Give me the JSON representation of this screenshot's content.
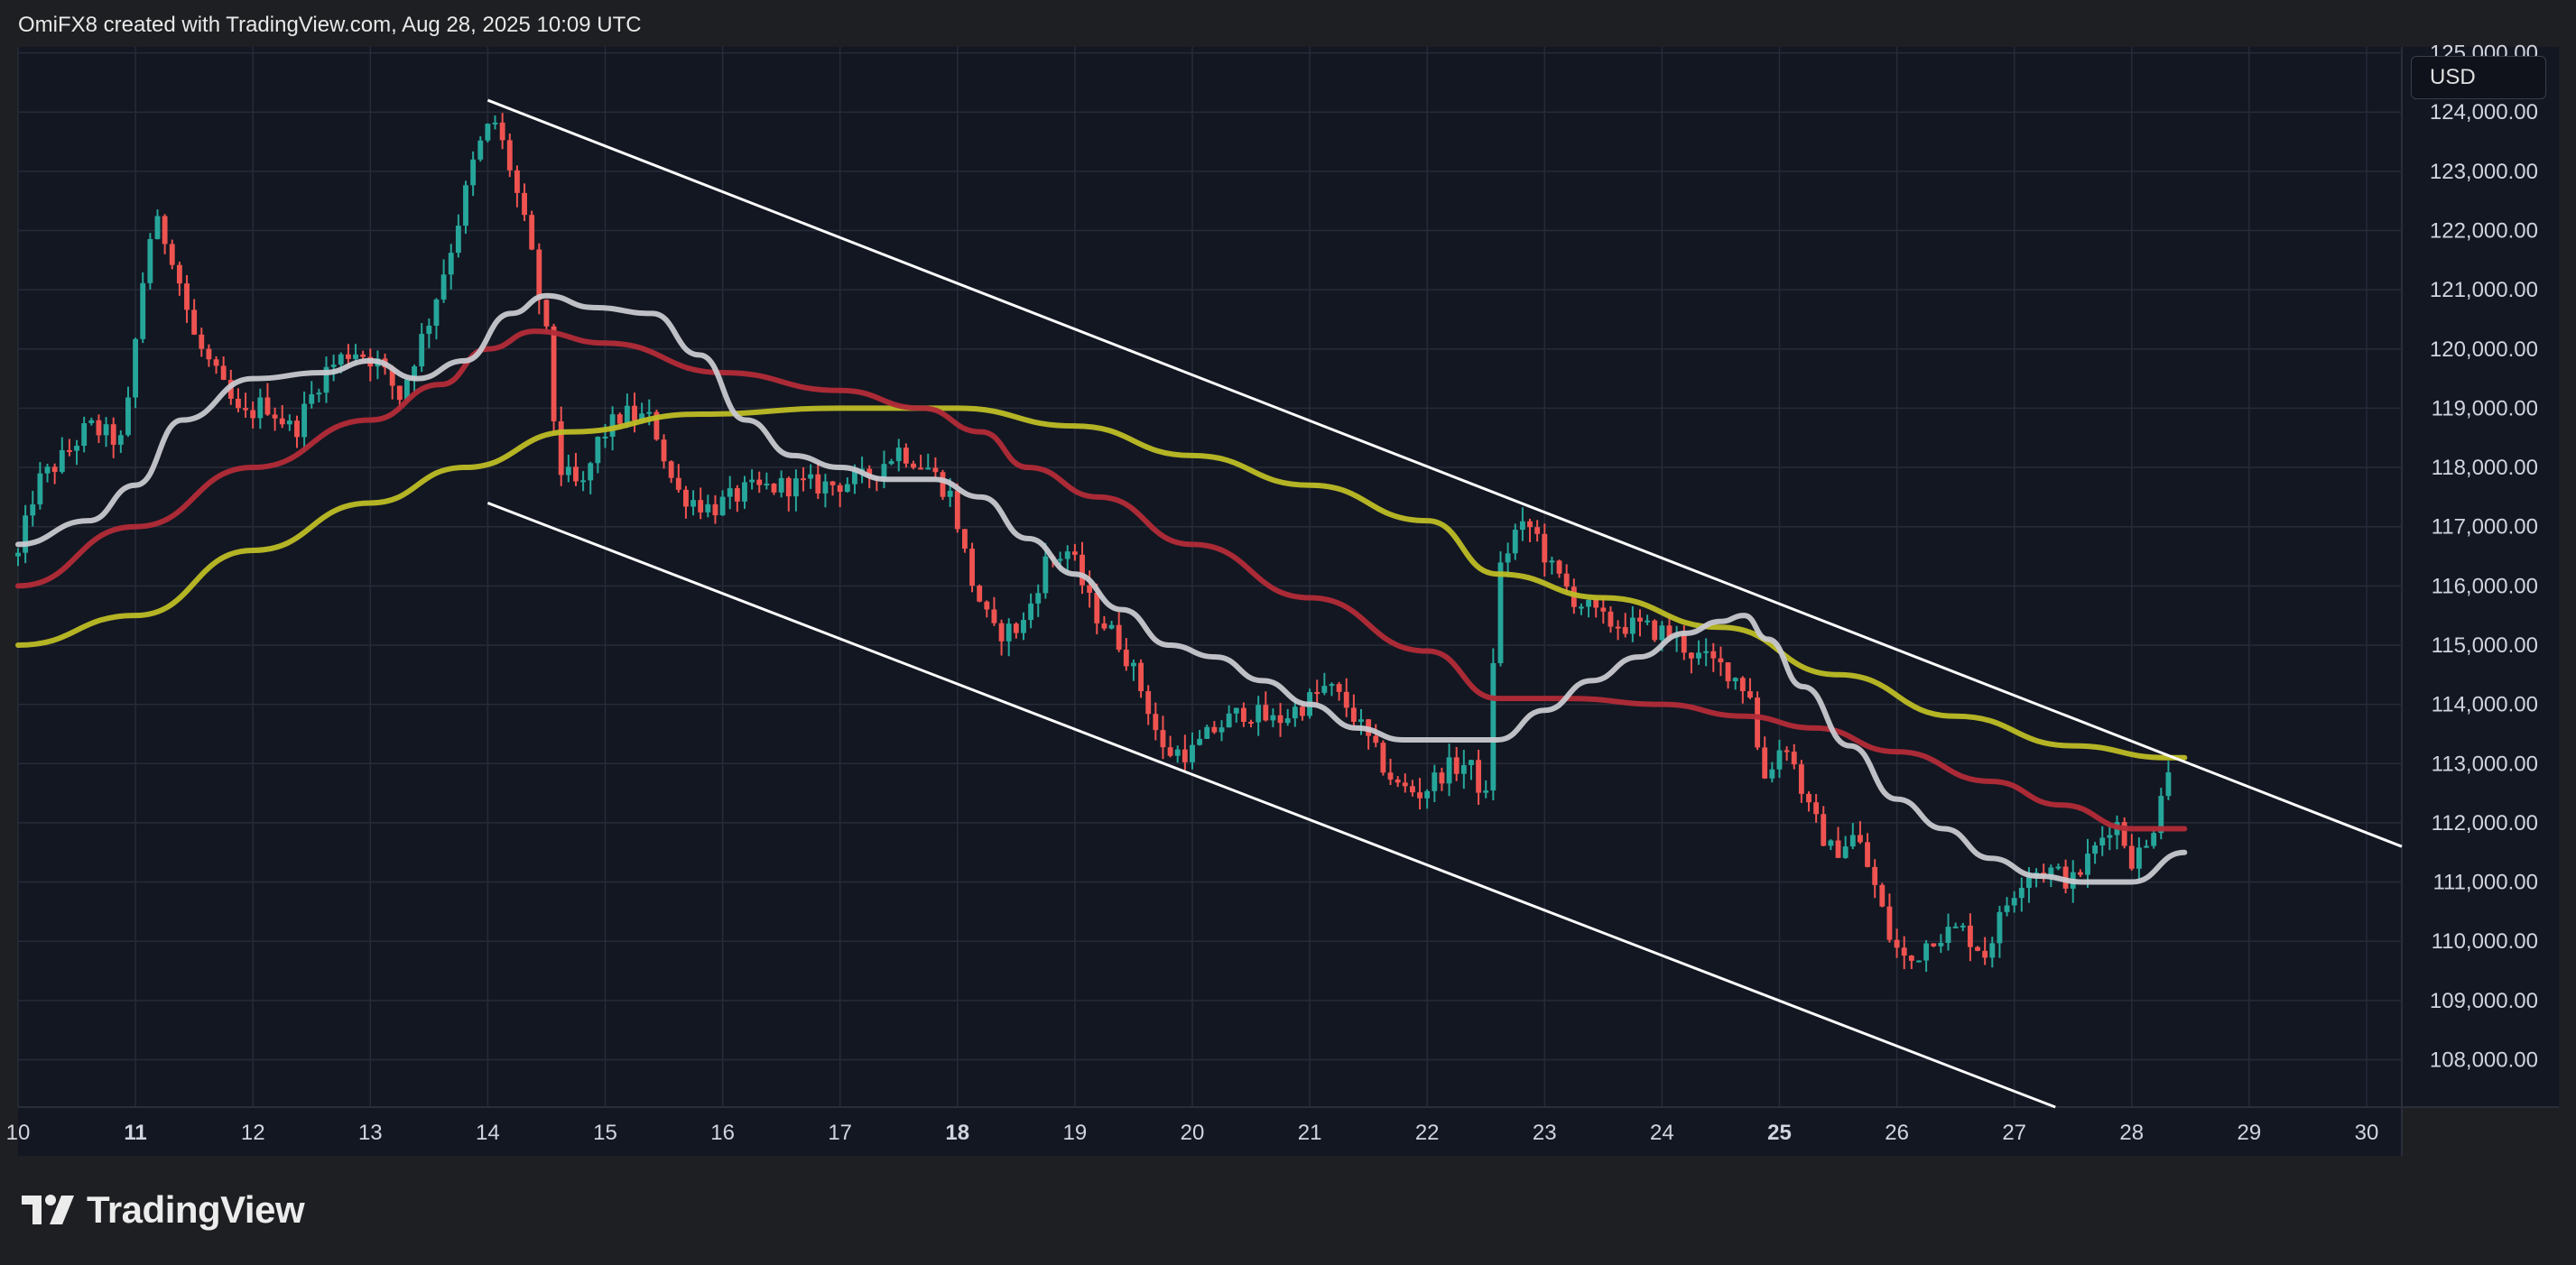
{
  "header": {
    "attribution": "OmiFX8 created with TradingView.com, Aug 28, 2025 10:09 UTC"
  },
  "branding": {
    "logo_text": "TradingView"
  },
  "scale_button": {
    "label": "USD"
  },
  "colors": {
    "background": "#1e1f22",
    "plot_background": "#131722",
    "grid": "#262b38",
    "candle_up": "#26a69a",
    "candle_down": "#ef5350",
    "ma_fast": "#c8c9d0",
    "ma_mid": "#b22b38",
    "ma_slow": "#bdbd26",
    "channel": "#ffffff",
    "label_text": "#d1d4dc"
  },
  "chart_data": {
    "type": "candlestick",
    "symbol_currency": "USD",
    "x_axis": {
      "domain": [
        10,
        30.3
      ],
      "ticks": [
        {
          "x": 10,
          "label": "10",
          "bold": false
        },
        {
          "x": 11,
          "label": "11",
          "bold": true
        },
        {
          "x": 12,
          "label": "12",
          "bold": false
        },
        {
          "x": 13,
          "label": "13",
          "bold": false
        },
        {
          "x": 14,
          "label": "14",
          "bold": false
        },
        {
          "x": 15,
          "label": "15",
          "bold": false
        },
        {
          "x": 16,
          "label": "16",
          "bold": false
        },
        {
          "x": 17,
          "label": "17",
          "bold": false
        },
        {
          "x": 18,
          "label": "18",
          "bold": true
        },
        {
          "x": 19,
          "label": "19",
          "bold": false
        },
        {
          "x": 20,
          "label": "20",
          "bold": false
        },
        {
          "x": 21,
          "label": "21",
          "bold": false
        },
        {
          "x": 22,
          "label": "22",
          "bold": false
        },
        {
          "x": 23,
          "label": "23",
          "bold": false
        },
        {
          "x": 24,
          "label": "24",
          "bold": false
        },
        {
          "x": 25,
          "label": "25",
          "bold": true
        },
        {
          "x": 26,
          "label": "26",
          "bold": false
        },
        {
          "x": 27,
          "label": "27",
          "bold": false
        },
        {
          "x": 28,
          "label": "28",
          "bold": false
        },
        {
          "x": 29,
          "label": "29",
          "bold": false
        },
        {
          "x": 30,
          "label": "30",
          "bold": false
        }
      ]
    },
    "y_axis": {
      "range": [
        107200,
        125100
      ],
      "ticks": [
        {
          "v": 108000,
          "label": "108,000.00"
        },
        {
          "v": 109000,
          "label": "109,000.00"
        },
        {
          "v": 110000,
          "label": "110,000.00"
        },
        {
          "v": 111000,
          "label": "111,000.00"
        },
        {
          "v": 112000,
          "label": "112,000.00"
        },
        {
          "v": 113000,
          "label": "113,000.00"
        },
        {
          "v": 114000,
          "label": "114,000.00"
        },
        {
          "v": 115000,
          "label": "115,000.00"
        },
        {
          "v": 116000,
          "label": "116,000.00"
        },
        {
          "v": 117000,
          "label": "117,000.00"
        },
        {
          "v": 118000,
          "label": "118,000.00"
        },
        {
          "v": 119000,
          "label": "119,000.00"
        },
        {
          "v": 120000,
          "label": "120,000.00"
        },
        {
          "v": 121000,
          "label": "121,000.00"
        },
        {
          "v": 122000,
          "label": "122,000.00"
        },
        {
          "v": 123000,
          "label": "123,000.00"
        },
        {
          "v": 124000,
          "label": "124,000.00"
        },
        {
          "v": 125000,
          "label": "125,000.00"
        }
      ]
    },
    "price_path": [
      [
        10.0,
        116500
      ],
      [
        10.15,
        117700
      ],
      [
        10.4,
        118200
      ],
      [
        10.6,
        118700
      ],
      [
        10.9,
        118400
      ],
      [
        11.05,
        121000
      ],
      [
        11.15,
        122200
      ],
      [
        11.3,
        121700
      ],
      [
        11.5,
        120200
      ],
      [
        11.7,
        119500
      ],
      [
        11.9,
        118800
      ],
      [
        12.1,
        119100
      ],
      [
        12.35,
        118600
      ],
      [
        12.6,
        119600
      ],
      [
        12.85,
        120000
      ],
      [
        13.05,
        119800
      ],
      [
        13.25,
        119200
      ],
      [
        13.5,
        120500
      ],
      [
        13.7,
        121800
      ],
      [
        13.9,
        123300
      ],
      [
        14.05,
        123900
      ],
      [
        14.2,
        123000
      ],
      [
        14.35,
        121800
      ],
      [
        14.5,
        120200
      ],
      [
        14.6,
        118000
      ],
      [
        14.8,
        117600
      ],
      [
        14.95,
        118500
      ],
      [
        15.15,
        118900
      ],
      [
        15.4,
        118800
      ],
      [
        15.6,
        117600
      ],
      [
        15.9,
        117300
      ],
      [
        16.2,
        117600
      ],
      [
        16.55,
        117700
      ],
      [
        16.9,
        117700
      ],
      [
        17.2,
        117800
      ],
      [
        17.5,
        118300
      ],
      [
        17.75,
        118000
      ],
      [
        17.95,
        117500
      ],
      [
        18.1,
        116200
      ],
      [
        18.3,
        115200
      ],
      [
        18.55,
        115300
      ],
      [
        18.75,
        116400
      ],
      [
        18.95,
        116600
      ],
      [
        19.15,
        115600
      ],
      [
        19.4,
        115000
      ],
      [
        19.6,
        114100
      ],
      [
        19.75,
        113200
      ],
      [
        20.0,
        113200
      ],
      [
        20.2,
        113600
      ],
      [
        20.45,
        113900
      ],
      [
        20.7,
        113700
      ],
      [
        20.95,
        114000
      ],
      [
        21.15,
        114300
      ],
      [
        21.35,
        113900
      ],
      [
        21.55,
        113200
      ],
      [
        21.75,
        112600
      ],
      [
        21.95,
        112500
      ],
      [
        22.15,
        112900
      ],
      [
        22.35,
        113000
      ],
      [
        22.5,
        112400
      ],
      [
        22.6,
        116200
      ],
      [
        22.75,
        116900
      ],
      [
        22.9,
        117000
      ],
      [
        23.05,
        116300
      ],
      [
        23.25,
        115800
      ],
      [
        23.5,
        115400
      ],
      [
        23.8,
        115300
      ],
      [
        24.05,
        115200
      ],
      [
        24.3,
        114800
      ],
      [
        24.55,
        114600
      ],
      [
        24.75,
        114200
      ],
      [
        24.85,
        112700
      ],
      [
        25.05,
        113400
      ],
      [
        25.25,
        112200
      ],
      [
        25.45,
        111500
      ],
      [
        25.65,
        111800
      ],
      [
        25.8,
        111000
      ],
      [
        25.95,
        110000
      ],
      [
        26.1,
        109600
      ],
      [
        26.3,
        110100
      ],
      [
        26.55,
        110200
      ],
      [
        26.75,
        109800
      ],
      [
        26.95,
        110700
      ],
      [
        27.1,
        111200
      ],
      [
        27.3,
        111200
      ],
      [
        27.5,
        111000
      ],
      [
        27.7,
        111600
      ],
      [
        27.85,
        112100
      ],
      [
        28.0,
        111400
      ],
      [
        28.15,
        111600
      ],
      [
        28.25,
        112600
      ],
      [
        28.35,
        113100
      ]
    ],
    "candle_step_days": 0.0625,
    "moving_averages": [
      {
        "color_key": "ma_slow",
        "points": [
          [
            10,
            115000
          ],
          [
            11,
            115500
          ],
          [
            12,
            116600
          ],
          [
            13,
            117400
          ],
          [
            13.8,
            118000
          ],
          [
            14.7,
            118600
          ],
          [
            15.8,
            118900
          ],
          [
            17.0,
            119000
          ],
          [
            18.0,
            119000
          ],
          [
            19.0,
            118700
          ],
          [
            20.0,
            118200
          ],
          [
            21.0,
            117700
          ],
          [
            22.0,
            117100
          ],
          [
            22.6,
            116200
          ],
          [
            23.5,
            115800
          ],
          [
            24.5,
            115300
          ],
          [
            25.5,
            114500
          ],
          [
            26.5,
            113800
          ],
          [
            27.5,
            113300
          ],
          [
            28.3,
            113100
          ],
          [
            28.45,
            113100
          ]
        ]
      },
      {
        "color_key": "ma_mid",
        "points": [
          [
            10,
            116000
          ],
          [
            11,
            117000
          ],
          [
            12,
            118000
          ],
          [
            13,
            118800
          ],
          [
            13.6,
            119400
          ],
          [
            14.0,
            120000
          ],
          [
            14.4,
            120300
          ],
          [
            15.0,
            120100
          ],
          [
            16.0,
            119600
          ],
          [
            17.0,
            119300
          ],
          [
            17.7,
            119000
          ],
          [
            18.2,
            118600
          ],
          [
            18.6,
            118000
          ],
          [
            19.2,
            117500
          ],
          [
            20.0,
            116700
          ],
          [
            21.0,
            115800
          ],
          [
            22.0,
            114900
          ],
          [
            22.6,
            114100
          ],
          [
            23.2,
            114100
          ],
          [
            24.0,
            114000
          ],
          [
            24.7,
            113800
          ],
          [
            25.3,
            113600
          ],
          [
            26.0,
            113200
          ],
          [
            26.8,
            112700
          ],
          [
            27.4,
            112300
          ],
          [
            28.0,
            111900
          ],
          [
            28.45,
            111900
          ]
        ]
      },
      {
        "color_key": "ma_fast",
        "points": [
          [
            10,
            116700
          ],
          [
            10.6,
            117100
          ],
          [
            11.0,
            117700
          ],
          [
            11.4,
            118800
          ],
          [
            12.0,
            119500
          ],
          [
            12.6,
            119600
          ],
          [
            13.0,
            119800
          ],
          [
            13.4,
            119500
          ],
          [
            13.8,
            119800
          ],
          [
            14.2,
            120600
          ],
          [
            14.5,
            120900
          ],
          [
            14.9,
            120700
          ],
          [
            15.4,
            120600
          ],
          [
            15.8,
            119900
          ],
          [
            16.2,
            118800
          ],
          [
            16.6,
            118200
          ],
          [
            17.0,
            118000
          ],
          [
            17.4,
            117800
          ],
          [
            17.8,
            117800
          ],
          [
            18.2,
            117500
          ],
          [
            18.6,
            116800
          ],
          [
            19.0,
            116200
          ],
          [
            19.4,
            115600
          ],
          [
            19.8,
            115000
          ],
          [
            20.2,
            114800
          ],
          [
            20.6,
            114400
          ],
          [
            21.0,
            114000
          ],
          [
            21.4,
            113600
          ],
          [
            21.8,
            113400
          ],
          [
            22.2,
            113400
          ],
          [
            22.6,
            113400
          ],
          [
            23.0,
            113900
          ],
          [
            23.4,
            114400
          ],
          [
            23.8,
            114800
          ],
          [
            24.2,
            115200
          ],
          [
            24.5,
            115400
          ],
          [
            24.7,
            115500
          ],
          [
            24.9,
            115100
          ],
          [
            25.2,
            114300
          ],
          [
            25.6,
            113300
          ],
          [
            26.0,
            112400
          ],
          [
            26.4,
            111900
          ],
          [
            26.8,
            111400
          ],
          [
            27.2,
            111100
          ],
          [
            27.6,
            111000
          ],
          [
            28.0,
            111000
          ],
          [
            28.45,
            111500
          ]
        ]
      }
    ],
    "trend_channel": {
      "upper": [
        [
          14.0,
          124200
        ],
        [
          30.3,
          111600
        ]
      ],
      "lower": [
        [
          14.0,
          117400
        ],
        [
          27.35,
          107200
        ]
      ]
    }
  }
}
